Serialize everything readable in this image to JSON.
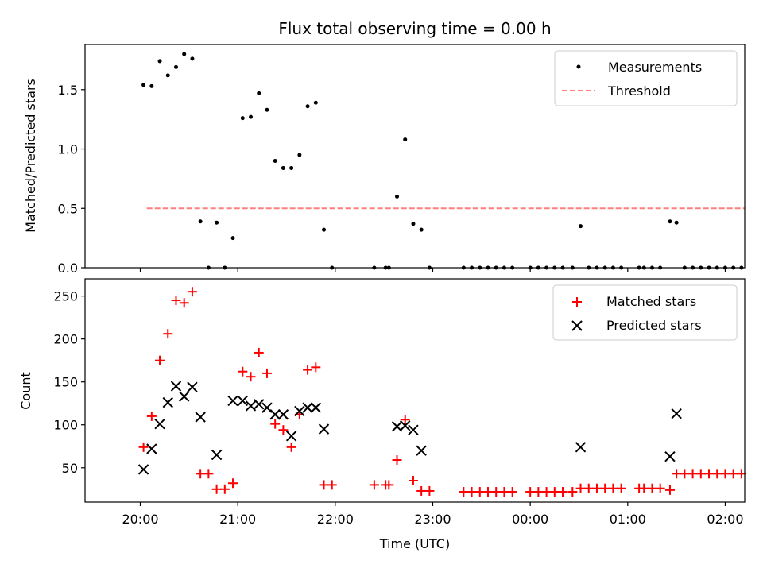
{
  "chart_data": [
    {
      "type": "scatter",
      "title": "Flux total observing time = 0.00 h",
      "xlabel": "",
      "ylabel": "Matched/Predicted stars",
      "ylim": [
        0,
        1.88
      ],
      "y_ticks": [
        0.0,
        0.5,
        1.0,
        1.5
      ],
      "y_tick_labels": [
        "0.0",
        "0.5",
        "1.0",
        "1.5"
      ],
      "legend_position": "top-right",
      "series": [
        {
          "name": "Measurements",
          "marker": "dot",
          "color": "#000000",
          "points": [
            [
              "20:02",
              1.54
            ],
            [
              "20:07",
              1.53
            ],
            [
              "20:12",
              1.74
            ],
            [
              "20:17",
              1.62
            ],
            [
              "20:22",
              1.69
            ],
            [
              "20:27",
              1.8
            ],
            [
              "20:32",
              1.76
            ],
            [
              "20:37",
              0.39
            ],
            [
              "20:42",
              0.0
            ],
            [
              "20:47",
              0.38
            ],
            [
              "20:52",
              0.0
            ],
            [
              "20:57",
              0.25
            ],
            [
              "21:03",
              1.26
            ],
            [
              "21:08",
              1.27
            ],
            [
              "21:13",
              1.47
            ],
            [
              "21:18",
              1.33
            ],
            [
              "21:23",
              0.9
            ],
            [
              "21:28",
              0.84
            ],
            [
              "21:33",
              0.84
            ],
            [
              "21:38",
              0.95
            ],
            [
              "21:43",
              1.36
            ],
            [
              "21:48",
              1.39
            ],
            [
              "21:53",
              0.32
            ],
            [
              "21:58",
              0.0
            ],
            [
              "22:24",
              0.0
            ],
            [
              "22:31",
              0.0
            ],
            [
              "22:33",
              0.0
            ],
            [
              "22:38",
              0.6
            ],
            [
              "22:43",
              1.08
            ],
            [
              "22:48",
              0.37
            ],
            [
              "22:53",
              0.32
            ],
            [
              "22:58",
              0.0
            ],
            [
              "23:19",
              0.0
            ],
            [
              "23:24",
              0.0
            ],
            [
              "23:29",
              0.0
            ],
            [
              "23:34",
              0.0
            ],
            [
              "23:39",
              0.0
            ],
            [
              "23:44",
              0.0
            ],
            [
              "23:49",
              0.0
            ],
            [
              "00:00",
              0.0
            ],
            [
              "00:05",
              0.0
            ],
            [
              "00:10",
              0.0
            ],
            [
              "00:15",
              0.0
            ],
            [
              "00:20",
              0.0
            ],
            [
              "00:26",
              0.0
            ],
            [
              "00:31",
              0.35
            ],
            [
              "00:36",
              0.0
            ],
            [
              "00:41",
              0.0
            ],
            [
              "00:46",
              0.0
            ],
            [
              "00:51",
              0.0
            ],
            [
              "00:56",
              0.0
            ],
            [
              "01:07",
              0.0
            ],
            [
              "01:10",
              0.0
            ],
            [
              "01:15",
              0.0
            ],
            [
              "01:20",
              0.0
            ],
            [
              "01:26",
              0.39
            ],
            [
              "01:30",
              0.38
            ],
            [
              "01:35",
              0.0
            ],
            [
              "01:40",
              0.0
            ],
            [
              "01:45",
              0.0
            ],
            [
              "01:50",
              0.0
            ],
            [
              "01:55",
              0.0
            ],
            [
              "02:00",
              0.0
            ],
            [
              "02:05",
              0.0
            ],
            [
              "02:10",
              0.0
            ]
          ]
        },
        {
          "name": "Threshold",
          "marker": "dashed-line",
          "color": "#ff7f7f",
          "points": [
            [
              "20:04",
              0.5
            ],
            [
              "02:12",
              0.5
            ]
          ]
        }
      ]
    },
    {
      "type": "scatter",
      "title": "",
      "xlabel": "Time (UTC)",
      "ylabel": "Count",
      "ylim": [
        10,
        270
      ],
      "y_ticks": [
        50,
        100,
        150,
        200,
        250
      ],
      "y_tick_labels": [
        "50",
        "100",
        "150",
        "200",
        "250"
      ],
      "x_ticks": [
        "20:00",
        "21:00",
        "22:00",
        "23:00",
        "00:00",
        "01:00",
        "02:00"
      ],
      "legend_position": "top-right",
      "series": [
        {
          "name": "Matched stars",
          "marker": "plus",
          "color": "#ff0000",
          "points": [
            [
              "20:02",
              74
            ],
            [
              "20:07",
              110
            ],
            [
              "20:12",
              175
            ],
            [
              "20:17",
              206
            ],
            [
              "20:22",
              245
            ],
            [
              "20:27",
              242
            ],
            [
              "20:32",
              255
            ],
            [
              "20:37",
              43
            ],
            [
              "20:42",
              43
            ],
            [
              "20:47",
              25
            ],
            [
              "20:52",
              25
            ],
            [
              "20:57",
              32
            ],
            [
              "21:03",
              162
            ],
            [
              "21:08",
              156
            ],
            [
              "21:13",
              184
            ],
            [
              "21:18",
              160
            ],
            [
              "21:23",
              101
            ],
            [
              "21:28",
              94
            ],
            [
              "21:33",
              74
            ],
            [
              "21:38",
              112
            ],
            [
              "21:43",
              164
            ],
            [
              "21:48",
              167
            ],
            [
              "21:53",
              30
            ],
            [
              "21:58",
              30
            ],
            [
              "22:24",
              30
            ],
            [
              "22:31",
              30
            ],
            [
              "22:33",
              30
            ],
            [
              "22:38",
              59
            ],
            [
              "22:43",
              106
            ],
            [
              "22:48",
              35
            ],
            [
              "22:53",
              23
            ],
            [
              "22:58",
              23
            ],
            [
              "23:19",
              22
            ],
            [
              "23:24",
              22
            ],
            [
              "23:29",
              22
            ],
            [
              "23:34",
              22
            ],
            [
              "23:39",
              22
            ],
            [
              "23:44",
              22
            ],
            [
              "23:49",
              22
            ],
            [
              "00:00",
              22
            ],
            [
              "00:05",
              22
            ],
            [
              "00:10",
              22
            ],
            [
              "00:15",
              22
            ],
            [
              "00:20",
              22
            ],
            [
              "00:26",
              22
            ],
            [
              "00:31",
              26
            ],
            [
              "00:36",
              26
            ],
            [
              "00:41",
              26
            ],
            [
              "00:46",
              26
            ],
            [
              "00:51",
              26
            ],
            [
              "00:56",
              26
            ],
            [
              "01:07",
              26
            ],
            [
              "01:10",
              26
            ],
            [
              "01:15",
              26
            ],
            [
              "01:20",
              26
            ],
            [
              "01:26",
              24
            ],
            [
              "01:30",
              43
            ],
            [
              "01:35",
              43
            ],
            [
              "01:40",
              43
            ],
            [
              "01:45",
              43
            ],
            [
              "01:50",
              43
            ],
            [
              "01:55",
              43
            ],
            [
              "02:00",
              43
            ],
            [
              "02:05",
              43
            ],
            [
              "02:10",
              43
            ]
          ]
        },
        {
          "name": "Predicted stars",
          "marker": "x",
          "color": "#000000",
          "points": [
            [
              "20:02",
              48
            ],
            [
              "20:07",
              72
            ],
            [
              "20:12",
              101
            ],
            [
              "20:17",
              126
            ],
            [
              "20:22",
              145
            ],
            [
              "20:27",
              133
            ],
            [
              "20:32",
              144
            ],
            [
              "20:37",
              109
            ],
            [
              "20:47",
              65
            ],
            [
              "20:57",
              128
            ],
            [
              "21:03",
              128
            ],
            [
              "21:08",
              122
            ],
            [
              "21:13",
              124
            ],
            [
              "21:18",
              120
            ],
            [
              "21:23",
              112
            ],
            [
              "21:28",
              112
            ],
            [
              "21:33",
              87
            ],
            [
              "21:38",
              116
            ],
            [
              "21:43",
              120
            ],
            [
              "21:48",
              120
            ],
            [
              "21:53",
              95
            ],
            [
              "22:38",
              98
            ],
            [
              "22:43",
              99
            ],
            [
              "22:48",
              94
            ],
            [
              "22:53",
              70
            ],
            [
              "00:31",
              74
            ],
            [
              "01:26",
              63
            ],
            [
              "01:30",
              113
            ]
          ]
        }
      ]
    }
  ]
}
